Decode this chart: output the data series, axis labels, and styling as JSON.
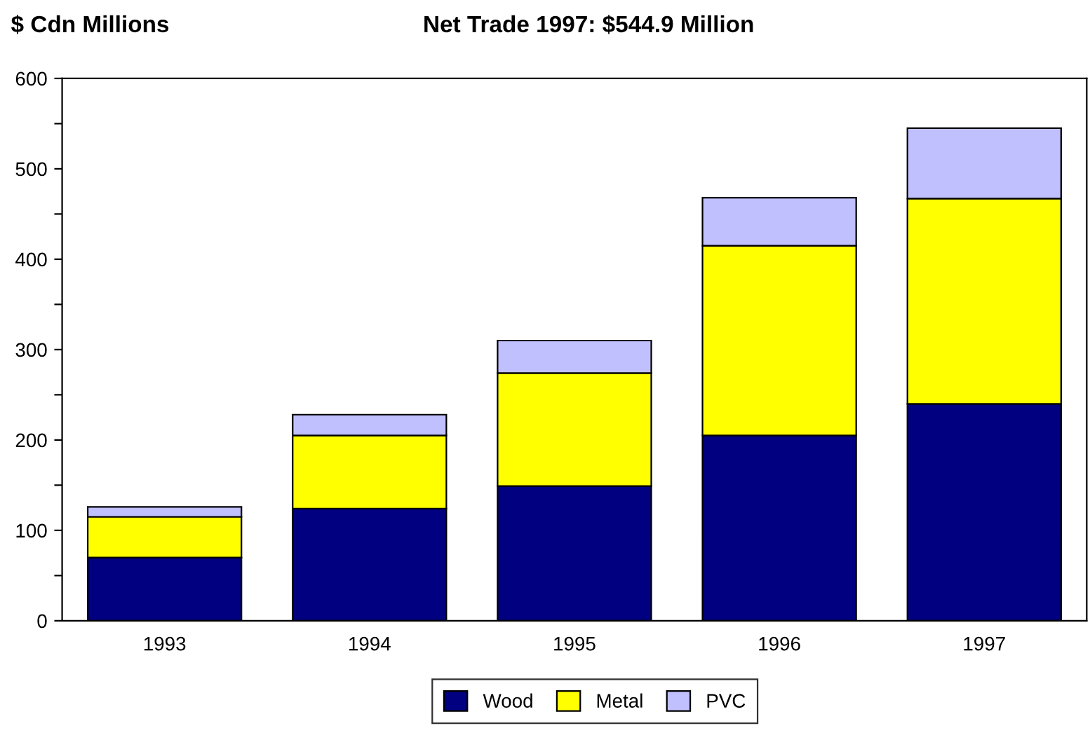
{
  "chart_data": {
    "type": "bar",
    "title": "Net Trade 1997: $544.9 Million",
    "ylabel": "$ Cdn Millions",
    "stacked": true,
    "categories": [
      "1993",
      "1994",
      "1995",
      "1996",
      "1997"
    ],
    "series": [
      {
        "name": "Wood",
        "color": "#000080",
        "values": [
          70,
          124,
          149,
          205,
          240
        ]
      },
      {
        "name": "Metal",
        "color": "#ffff00",
        "values": [
          45,
          81,
          125,
          210,
          227
        ]
      },
      {
        "name": "PVC",
        "color": "#c0c0ff",
        "values": [
          11,
          23,
          36,
          53,
          78
        ]
      }
    ],
    "ylim": [
      0,
      600
    ],
    "yticks": [
      0,
      {
        "value": 50,
        "label": null
      },
      100,
      {
        "value": 150,
        "label": null
      },
      200,
      {
        "value": 250,
        "label": null
      },
      300,
      {
        "value": 350,
        "label": null
      },
      400,
      {
        "value": 450,
        "label": null
      },
      500,
      {
        "value": 550,
        "label": null
      },
      600
    ],
    "grid": false,
    "legend": "bottom"
  }
}
